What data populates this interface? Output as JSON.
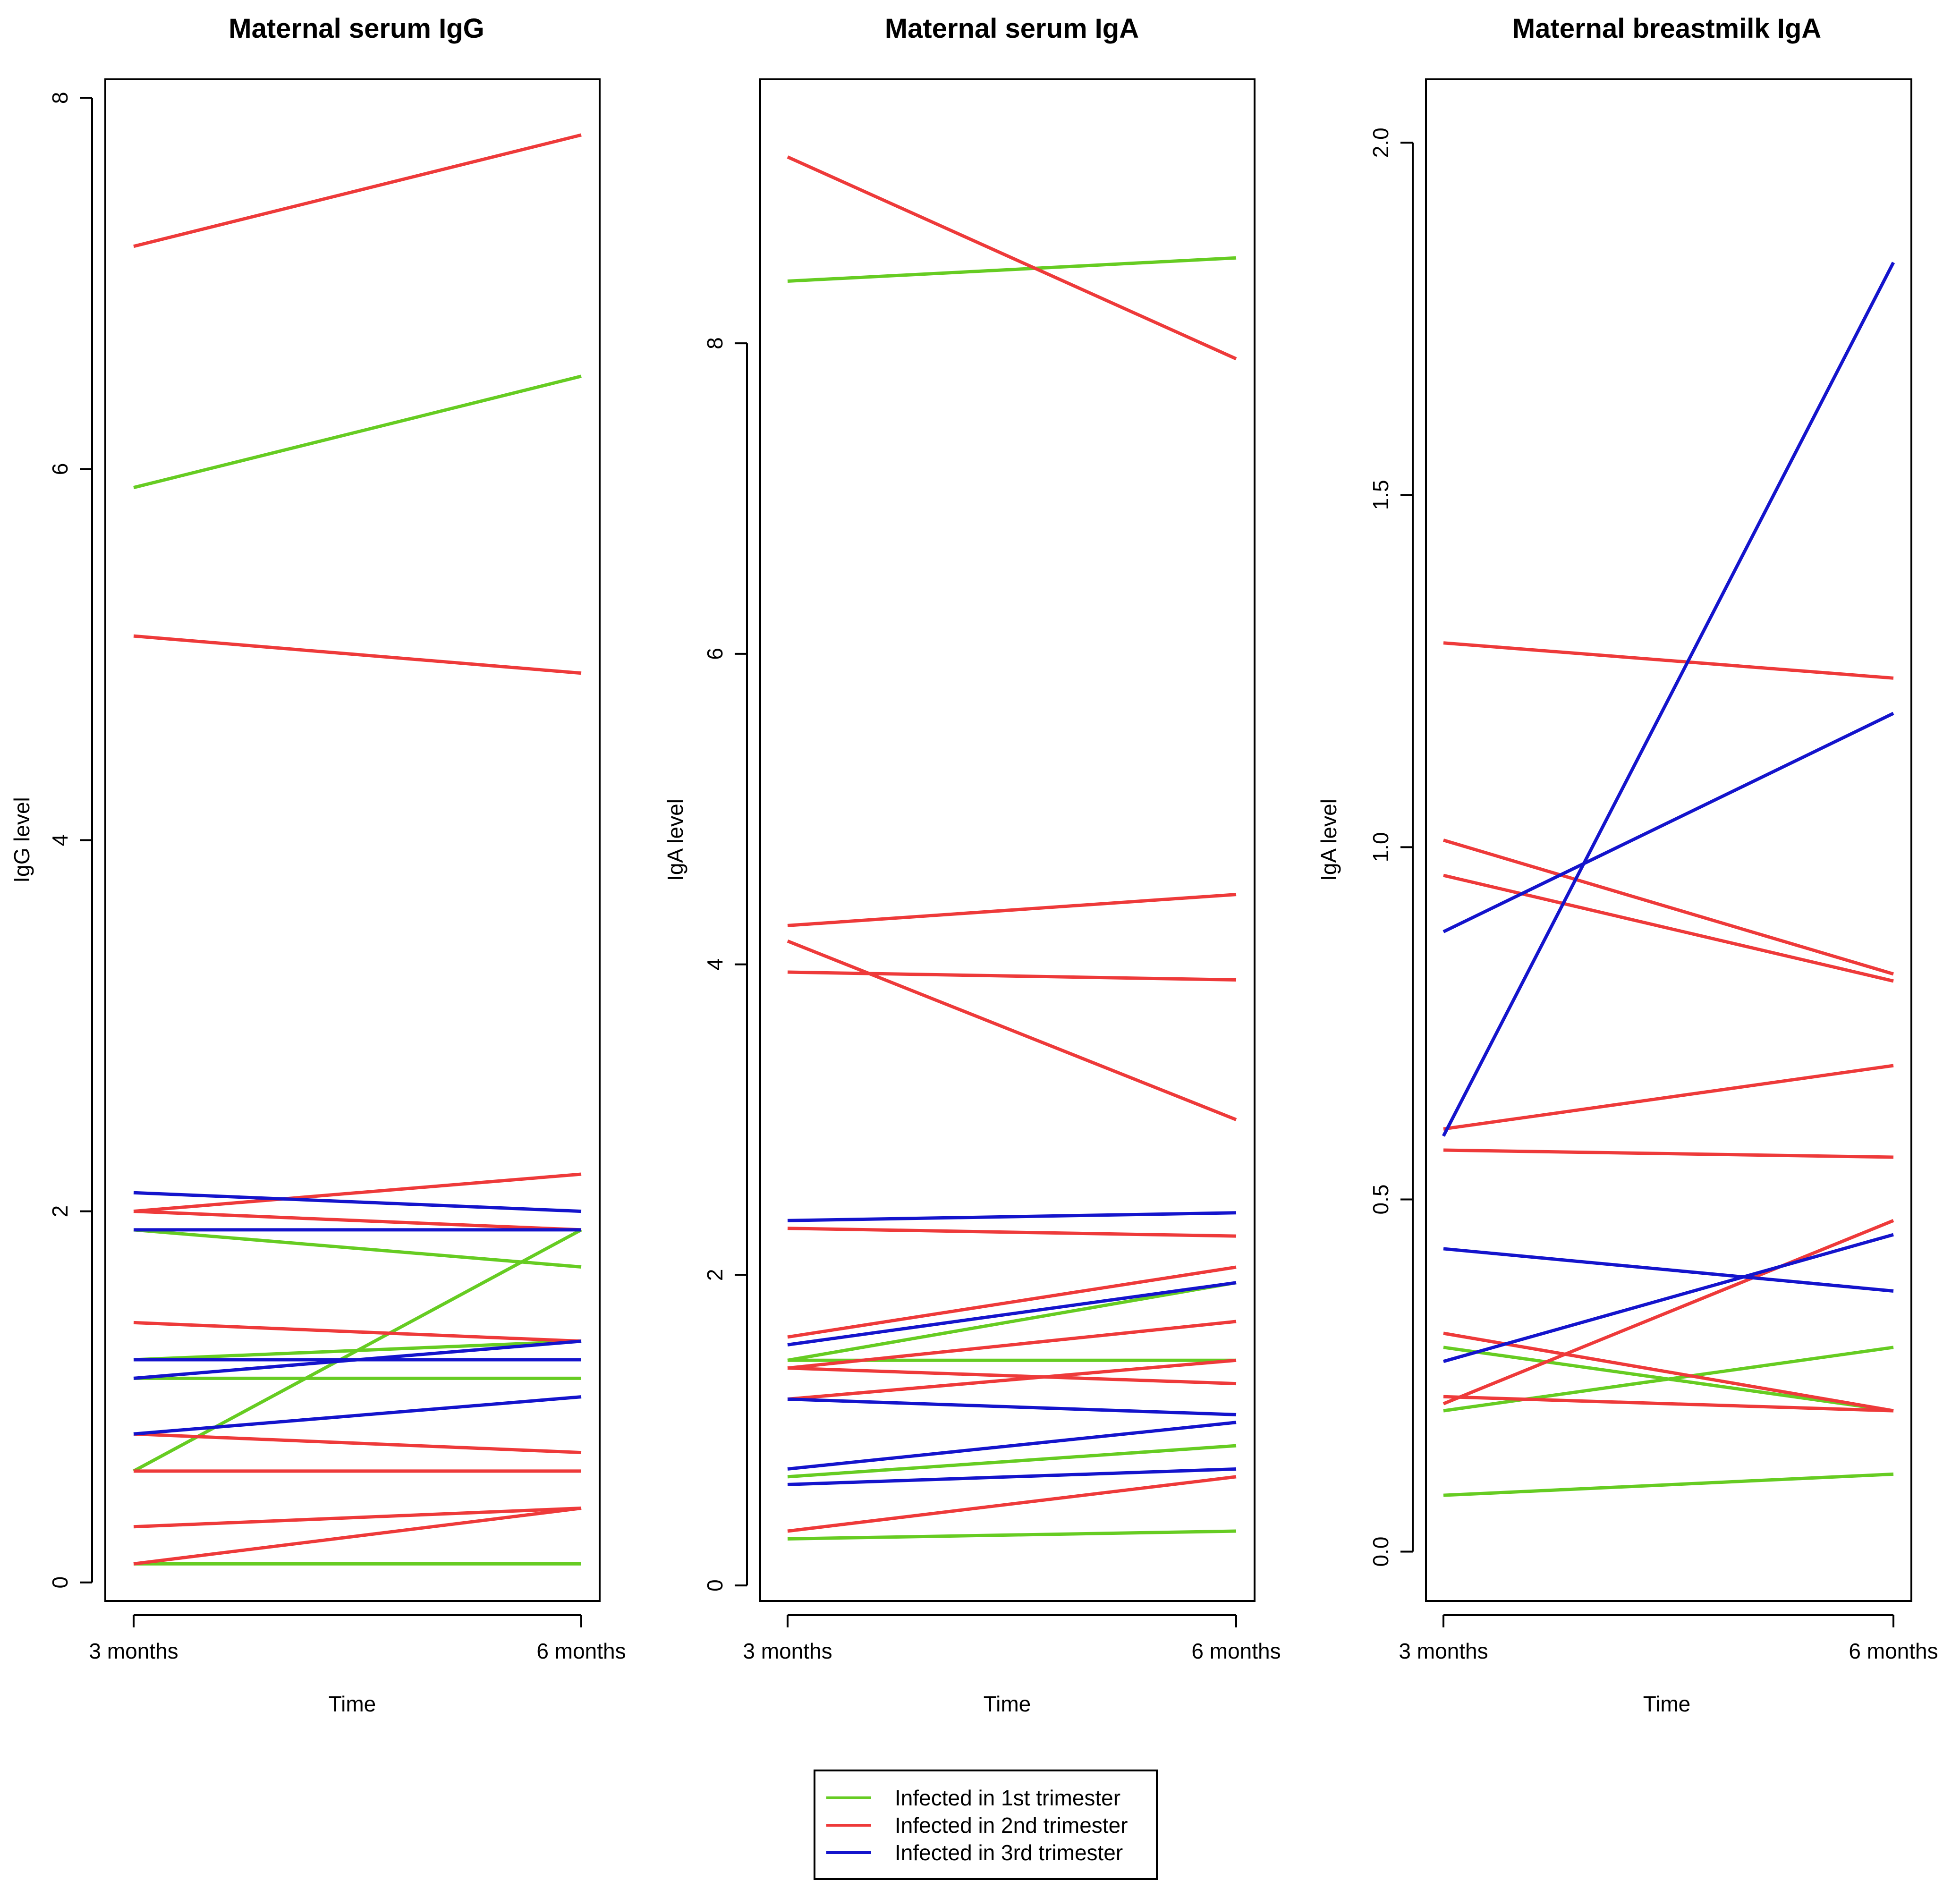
{
  "legend": {
    "items": [
      {
        "label": "Infected in 1st trimester",
        "color": "#66CC22"
      },
      {
        "label": "Infected in 2nd trimester",
        "color": "#EE3A3A"
      },
      {
        "label": "Infected in 3rd trimester",
        "color": "#1414CC"
      }
    ]
  },
  "chart_data": [
    {
      "type": "line",
      "title": "Maternal serum IgG",
      "xlabel": "Time",
      "ylabel": "IgG level",
      "categories": [
        "3 months",
        "6 months"
      ],
      "ylim": [
        -0.1,
        8.1
      ],
      "yticks": [
        0,
        2,
        4,
        6,
        8
      ],
      "grid": false,
      "series": [
        {
          "group": "1st trimester",
          "color": "#66CC22",
          "values": [
            5.9,
            6.5
          ]
        },
        {
          "group": "1st trimester",
          "color": "#66CC22",
          "values": [
            1.9,
            1.7
          ]
        },
        {
          "group": "1st trimester",
          "color": "#66CC22",
          "values": [
            0.6,
            1.9
          ]
        },
        {
          "group": "1st trimester",
          "color": "#66CC22",
          "values": [
            1.2,
            1.3
          ]
        },
        {
          "group": "1st trimester",
          "color": "#66CC22",
          "values": [
            1.1,
            1.1
          ]
        },
        {
          "group": "1st trimester",
          "color": "#66CC22",
          "values": [
            0.1,
            0.1
          ]
        },
        {
          "group": "2nd trimester",
          "color": "#EE3A3A",
          "values": [
            7.2,
            7.8
          ]
        },
        {
          "group": "2nd trimester",
          "color": "#EE3A3A",
          "values": [
            5.1,
            4.9
          ]
        },
        {
          "group": "2nd trimester",
          "color": "#EE3A3A",
          "values": [
            2.0,
            2.2
          ]
        },
        {
          "group": "2nd trimester",
          "color": "#EE3A3A",
          "values": [
            2.0,
            1.9
          ]
        },
        {
          "group": "2nd trimester",
          "color": "#EE3A3A",
          "values": [
            1.4,
            1.3
          ]
        },
        {
          "group": "2nd trimester",
          "color": "#EE3A3A",
          "values": [
            0.8,
            0.7
          ]
        },
        {
          "group": "2nd trimester",
          "color": "#EE3A3A",
          "values": [
            0.6,
            0.6
          ]
        },
        {
          "group": "2nd trimester",
          "color": "#EE3A3A",
          "values": [
            0.3,
            0.4
          ]
        },
        {
          "group": "2nd trimester",
          "color": "#EE3A3A",
          "values": [
            0.1,
            0.4
          ]
        },
        {
          "group": "3rd trimester",
          "color": "#1414CC",
          "values": [
            2.1,
            2.0
          ]
        },
        {
          "group": "3rd trimester",
          "color": "#1414CC",
          "values": [
            1.9,
            1.9
          ]
        },
        {
          "group": "3rd trimester",
          "color": "#1414CC",
          "values": [
            1.2,
            1.2
          ]
        },
        {
          "group": "3rd trimester",
          "color": "#1414CC",
          "values": [
            1.1,
            1.3
          ]
        },
        {
          "group": "3rd trimester",
          "color": "#1414CC",
          "values": [
            0.8,
            1.0
          ]
        }
      ]
    },
    {
      "type": "line",
      "title": "Maternal serum IgA",
      "xlabel": "Time",
      "ylabel": "IgA level",
      "categories": [
        "3 months",
        "6 months"
      ],
      "ylim": [
        -0.1,
        9.7
      ],
      "yticks": [
        0,
        2,
        4,
        6,
        8
      ],
      "grid": false,
      "series": [
        {
          "group": "1st trimester",
          "color": "#66CC22",
          "values": [
            8.4,
            8.55
          ]
        },
        {
          "group": "1st trimester",
          "color": "#66CC22",
          "values": [
            1.45,
            1.95
          ]
        },
        {
          "group": "1st trimester",
          "color": "#66CC22",
          "values": [
            1.45,
            1.45
          ]
        },
        {
          "group": "1st trimester",
          "color": "#66CC22",
          "values": [
            0.7,
            0.9
          ]
        },
        {
          "group": "1st trimester",
          "color": "#66CC22",
          "values": [
            0.3,
            0.35
          ]
        },
        {
          "group": "2nd trimester",
          "color": "#EE3A3A",
          "values": [
            9.2,
            7.9
          ]
        },
        {
          "group": "2nd trimester",
          "color": "#EE3A3A",
          "values": [
            4.25,
            4.45
          ]
        },
        {
          "group": "2nd trimester",
          "color": "#EE3A3A",
          "values": [
            4.15,
            3.0
          ]
        },
        {
          "group": "2nd trimester",
          "color": "#EE3A3A",
          "values": [
            3.95,
            3.9
          ]
        },
        {
          "group": "2nd trimester",
          "color": "#EE3A3A",
          "values": [
            2.3,
            2.25
          ]
        },
        {
          "group": "2nd trimester",
          "color": "#EE3A3A",
          "values": [
            1.6,
            2.05
          ]
        },
        {
          "group": "2nd trimester",
          "color": "#EE3A3A",
          "values": [
            1.4,
            1.3
          ]
        },
        {
          "group": "2nd trimester",
          "color": "#EE3A3A",
          "values": [
            1.4,
            1.7
          ]
        },
        {
          "group": "2nd trimester",
          "color": "#EE3A3A",
          "values": [
            1.2,
            1.45
          ]
        },
        {
          "group": "2nd trimester",
          "color": "#EE3A3A",
          "values": [
            0.35,
            0.7
          ]
        },
        {
          "group": "3rd trimester",
          "color": "#1414CC",
          "values": [
            2.35,
            2.4
          ]
        },
        {
          "group": "3rd trimester",
          "color": "#1414CC",
          "values": [
            1.55,
            1.95
          ]
        },
        {
          "group": "3rd trimester",
          "color": "#1414CC",
          "values": [
            1.2,
            1.1
          ]
        },
        {
          "group": "3rd trimester",
          "color": "#1414CC",
          "values": [
            0.75,
            1.05
          ]
        },
        {
          "group": "3rd trimester",
          "color": "#1414CC",
          "values": [
            0.65,
            0.75
          ]
        }
      ]
    },
    {
      "type": "line",
      "title": "Maternal breastmilk IgA",
      "xlabel": "Time",
      "ylabel": "IgA level",
      "categories": [
        "3 months",
        "6 months"
      ],
      "ylim": [
        -0.07,
        2.09
      ],
      "yticks": [
        "0.0",
        "0.5",
        "1.0",
        "1.5",
        "2.0"
      ],
      "grid": false,
      "series": [
        {
          "group": "1st trimester",
          "color": "#66CC22",
          "values": [
            0.29,
            0.2
          ]
        },
        {
          "group": "1st trimester",
          "color": "#66CC22",
          "values": [
            0.2,
            0.29
          ]
        },
        {
          "group": "1st trimester",
          "color": "#66CC22",
          "values": [
            0.08,
            0.11
          ]
        },
        {
          "group": "2nd trimester",
          "color": "#EE3A3A",
          "values": [
            1.29,
            1.24
          ]
        },
        {
          "group": "2nd trimester",
          "color": "#EE3A3A",
          "values": [
            1.01,
            0.82
          ]
        },
        {
          "group": "2nd trimester",
          "color": "#EE3A3A",
          "values": [
            0.96,
            0.81
          ]
        },
        {
          "group": "2nd trimester",
          "color": "#EE3A3A",
          "values": [
            0.6,
            0.69
          ]
        },
        {
          "group": "2nd trimester",
          "color": "#EE3A3A",
          "values": [
            0.57,
            0.56
          ]
        },
        {
          "group": "2nd trimester",
          "color": "#EE3A3A",
          "values": [
            0.31,
            0.2
          ]
        },
        {
          "group": "2nd trimester",
          "color": "#EE3A3A",
          "values": [
            0.21,
            0.47
          ]
        },
        {
          "group": "2nd trimester",
          "color": "#EE3A3A",
          "values": [
            0.22,
            0.2
          ]
        },
        {
          "group": "3rd trimester",
          "color": "#1414CC",
          "values": [
            0.59,
            1.83
          ]
        },
        {
          "group": "3rd trimester",
          "color": "#1414CC",
          "values": [
            0.88,
            1.19
          ]
        },
        {
          "group": "3rd trimester",
          "color": "#1414CC",
          "values": [
            0.43,
            0.37
          ]
        },
        {
          "group": "3rd trimester",
          "color": "#1414CC",
          "values": [
            0.27,
            0.45
          ]
        }
      ]
    }
  ]
}
